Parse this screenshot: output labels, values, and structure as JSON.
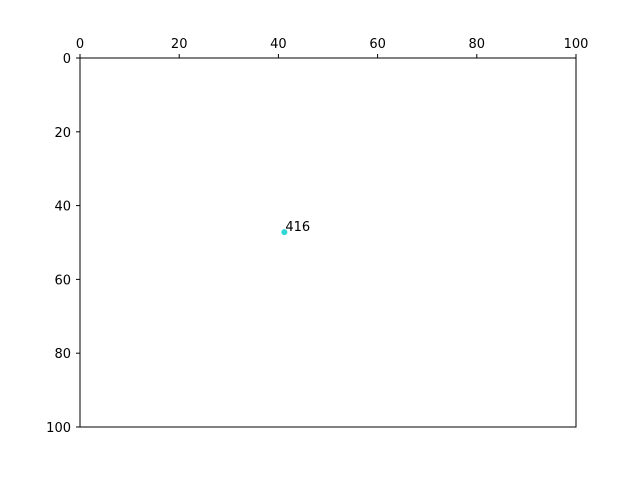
{
  "chart_data": {
    "type": "scatter",
    "title": "",
    "xlabel": "",
    "ylabel": "",
    "xlim": [
      0,
      100
    ],
    "ylim": [
      0,
      100
    ],
    "x_axis_position": "top",
    "y_inverted": true,
    "grid": false,
    "xticks": [
      "0",
      "20",
      "40",
      "60",
      "80",
      "100"
    ],
    "yticks": [
      "0",
      "20",
      "40",
      "60",
      "80",
      "100"
    ],
    "points": [
      {
        "x": 41.2,
        "y": 47.2,
        "label": "416",
        "color": "#2fd6d6"
      }
    ]
  }
}
